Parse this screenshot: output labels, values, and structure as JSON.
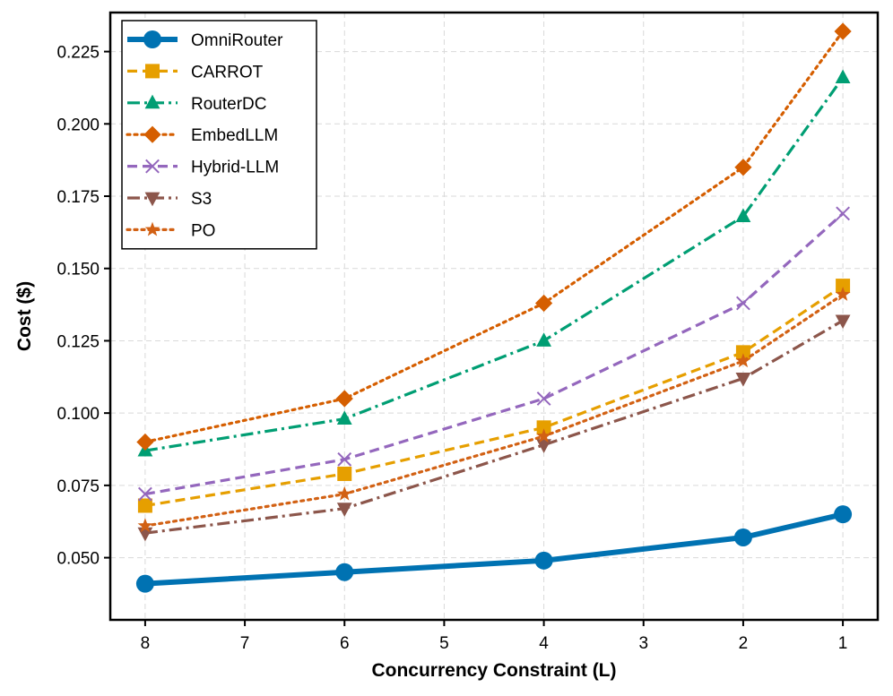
{
  "chart_data": {
    "type": "line",
    "title": "",
    "xlabel": "Concurrency Constraint (L)",
    "ylabel": "Cost ($)",
    "x_reversed": true,
    "xlim": [
      8.35,
      0.65
    ],
    "ylim": [
      0.0285,
      0.2385
    ],
    "x_ticks": [
      8,
      7,
      6,
      5,
      4,
      3,
      2,
      1
    ],
    "x_tick_labels": [
      "8",
      "7",
      "6",
      "5",
      "4",
      "3",
      "2",
      "1"
    ],
    "y_ticks": [
      0.05,
      0.075,
      0.1,
      0.125,
      0.15,
      0.175,
      0.2,
      0.225
    ],
    "y_tick_labels": [
      "0.050",
      "0.075",
      "0.100",
      "0.125",
      "0.150",
      "0.175",
      "0.200",
      "0.225"
    ],
    "grid": true,
    "legend_position": "top-left",
    "x": [
      8,
      6,
      4,
      2,
      1
    ],
    "series": [
      {
        "name": "OmniRouter",
        "values": [
          0.041,
          0.045,
          0.049,
          0.057,
          0.065
        ],
        "color": "#0072B2",
        "marker": "circle",
        "dash": "solid",
        "width": "thick"
      },
      {
        "name": "CARROT",
        "values": [
          0.068,
          0.079,
          0.095,
          0.121,
          0.144
        ],
        "color": "#E69F00",
        "marker": "square",
        "dash": "dashed",
        "width": "normal"
      },
      {
        "name": "RouterDC",
        "values": [
          0.087,
          0.098,
          0.125,
          0.168,
          0.216
        ],
        "color": "#009E73",
        "marker": "triangle-up",
        "dash": "dashdot",
        "width": "normal"
      },
      {
        "name": "EmbedLLM",
        "values": [
          0.09,
          0.105,
          0.138,
          0.185,
          0.232
        ],
        "color": "#D55E00",
        "marker": "diamond",
        "dash": "dotted",
        "width": "normal"
      },
      {
        "name": "Hybrid-LLM",
        "values": [
          0.072,
          0.084,
          0.105,
          0.138,
          0.169
        ],
        "color": "#9467BD",
        "marker": "x",
        "dash": "dashed",
        "width": "normal"
      },
      {
        "name": "S3",
        "values": [
          0.0585,
          0.067,
          0.089,
          0.112,
          0.132
        ],
        "color": "#8C564B",
        "marker": "triangle-down",
        "dash": "dashdot",
        "width": "normal"
      },
      {
        "name": "PO",
        "values": [
          0.061,
          0.072,
          0.092,
          0.118,
          0.141
        ],
        "color": "#D26114",
        "marker": "star",
        "dash": "dotted",
        "width": "normal"
      }
    ]
  }
}
